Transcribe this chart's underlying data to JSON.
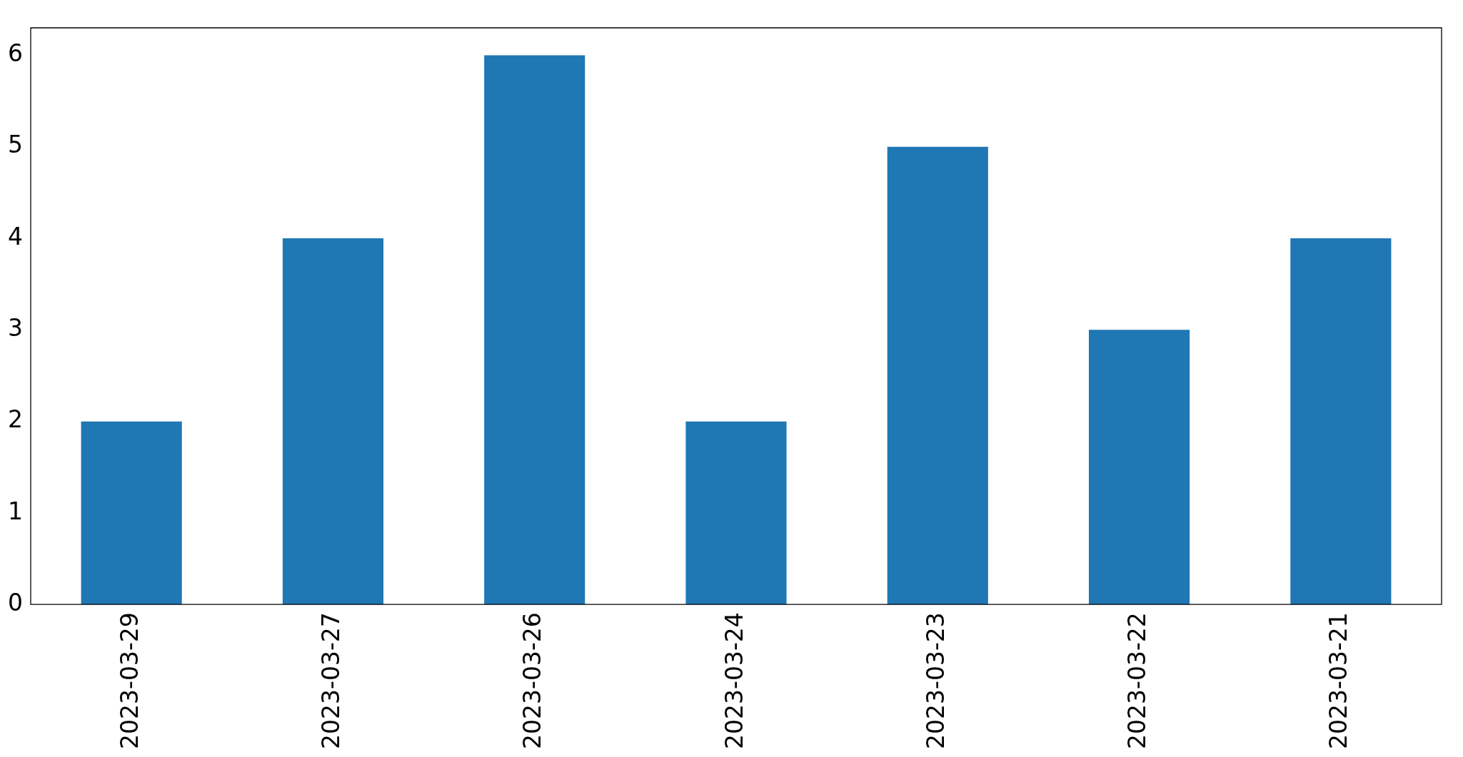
{
  "chart_data": {
    "type": "bar",
    "categories": [
      "2023-03-29",
      "2023-03-27",
      "2023-03-26",
      "2023-03-24",
      "2023-03-23",
      "2023-03-22",
      "2023-03-21"
    ],
    "values": [
      2,
      4,
      6,
      2,
      5,
      3,
      4
    ],
    "color": "#1f77b4",
    "ylim": [
      0,
      6.3
    ],
    "yticks": [
      0,
      1,
      2,
      3,
      4,
      5,
      6
    ],
    "grid": false,
    "legend": false
  }
}
